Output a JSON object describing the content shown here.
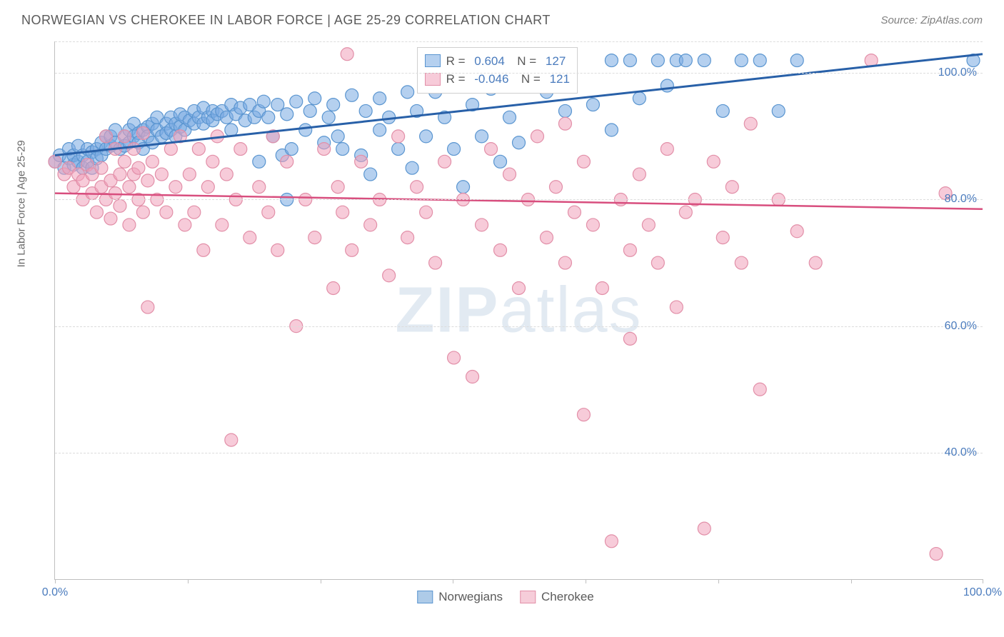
{
  "title": "NORWEGIAN VS CHEROKEE IN LABOR FORCE | AGE 25-29 CORRELATION CHART",
  "source": "Source: ZipAtlas.com",
  "yaxis_label": "In Labor Force | Age 25-29",
  "watermark": "ZIPatlas",
  "chart": {
    "type": "scatter-with-regression",
    "xlim": [
      0,
      100
    ],
    "ylim": [
      20,
      105
    ],
    "yticks": [
      40,
      60,
      80,
      100
    ],
    "ytick_labels": [
      "40.0%",
      "60.0%",
      "80.0%",
      "100.0%"
    ],
    "xtick_positions": [
      0,
      14.3,
      28.6,
      42.9,
      57.2,
      71.5,
      85.8,
      100
    ],
    "xtick_labels_shown": {
      "0": "0.0%",
      "100": "100.0%"
    },
    "grid_color": "#dcdcdc",
    "axis_color": "#bfbfbf",
    "background_color": "#ffffff",
    "series": [
      {
        "name": "Norwegians",
        "marker_color_fill": "rgba(120,170,225,0.55)",
        "marker_color_stroke": "#5a95d0",
        "marker_radius": 9,
        "line_color": "#2860a8",
        "line_width": 3,
        "regression": {
          "x0": 0,
          "y0": 87,
          "x1": 100,
          "y1": 103
        },
        "R": "0.604",
        "N": "127",
        "points": [
          [
            0,
            86
          ],
          [
            0.5,
            87
          ],
          [
            1,
            85
          ],
          [
            1.5,
            86.5
          ],
          [
            1.5,
            88
          ],
          [
            2,
            85.5
          ],
          [
            2,
            87
          ],
          [
            2.5,
            86
          ],
          [
            2.5,
            88.5
          ],
          [
            3,
            87
          ],
          [
            3,
            85
          ],
          [
            3.5,
            86
          ],
          [
            3.5,
            88
          ],
          [
            4,
            87.5
          ],
          [
            4,
            85
          ],
          [
            4.5,
            88
          ],
          [
            4.5,
            86.5
          ],
          [
            5,
            89
          ],
          [
            5,
            87
          ],
          [
            5.5,
            88
          ],
          [
            5.5,
            90
          ],
          [
            6,
            88.5
          ],
          [
            6,
            90
          ],
          [
            6.5,
            89
          ],
          [
            6.5,
            91
          ],
          [
            7,
            88
          ],
          [
            7.5,
            90
          ],
          [
            7.5,
            88.5
          ],
          [
            8,
            91
          ],
          [
            8,
            89
          ],
          [
            8.5,
            90
          ],
          [
            8.5,
            92
          ],
          [
            9,
            90.5
          ],
          [
            9,
            89
          ],
          [
            9.5,
            91
          ],
          [
            9.5,
            88
          ],
          [
            10,
            91.5
          ],
          [
            10,
            90
          ],
          [
            10.5,
            92
          ],
          [
            10.5,
            89
          ],
          [
            11,
            91
          ],
          [
            11,
            93
          ],
          [
            11.5,
            90
          ],
          [
            12,
            92
          ],
          [
            12,
            90.5
          ],
          [
            12.5,
            93
          ],
          [
            12.5,
            91
          ],
          [
            13,
            92
          ],
          [
            13,
            90
          ],
          [
            13.5,
            93.5
          ],
          [
            13.5,
            91.5
          ],
          [
            14,
            93
          ],
          [
            14,
            91
          ],
          [
            14.5,
            92.5
          ],
          [
            15,
            94
          ],
          [
            15,
            92
          ],
          [
            15.5,
            93
          ],
          [
            16,
            94.5
          ],
          [
            16,
            92
          ],
          [
            16.5,
            93
          ],
          [
            17,
            94
          ],
          [
            17,
            92.5
          ],
          [
            17.5,
            93.5
          ],
          [
            18,
            94
          ],
          [
            18.5,
            93
          ],
          [
            19,
            95
          ],
          [
            19,
            91
          ],
          [
            19.5,
            93.5
          ],
          [
            20,
            94.5
          ],
          [
            20.5,
            92.5
          ],
          [
            21,
            95
          ],
          [
            21.5,
            93
          ],
          [
            22,
            86
          ],
          [
            22,
            94
          ],
          [
            22.5,
            95.5
          ],
          [
            23,
            93
          ],
          [
            23.5,
            90
          ],
          [
            24,
            95
          ],
          [
            24.5,
            87
          ],
          [
            25,
            93.5
          ],
          [
            25,
            80
          ],
          [
            25.5,
            88
          ],
          [
            26,
            95.5
          ],
          [
            27,
            91
          ],
          [
            27.5,
            94
          ],
          [
            28,
            96
          ],
          [
            29,
            89
          ],
          [
            29.5,
            93
          ],
          [
            30,
            95
          ],
          [
            30.5,
            90
          ],
          [
            31,
            88
          ],
          [
            32,
            96.5
          ],
          [
            33,
            87
          ],
          [
            33.5,
            94
          ],
          [
            34,
            84
          ],
          [
            35,
            96
          ],
          [
            35,
            91
          ],
          [
            36,
            93
          ],
          [
            37,
            88
          ],
          [
            38,
            97
          ],
          [
            38.5,
            85
          ],
          [
            39,
            94
          ],
          [
            40,
            90
          ],
          [
            41,
            97
          ],
          [
            42,
            93
          ],
          [
            43,
            88
          ],
          [
            44,
            82
          ],
          [
            45,
            95
          ],
          [
            46,
            90
          ],
          [
            47,
            97.5
          ],
          [
            48,
            86
          ],
          [
            49,
            93
          ],
          [
            50,
            89
          ],
          [
            52,
            102
          ],
          [
            53,
            97
          ],
          [
            55,
            94
          ],
          [
            58,
            95
          ],
          [
            60,
            91
          ],
          [
            60,
            102
          ],
          [
            62,
            102
          ],
          [
            63,
            96
          ],
          [
            65,
            102
          ],
          [
            66,
            98
          ],
          [
            67,
            102
          ],
          [
            68,
            102
          ],
          [
            70,
            102
          ],
          [
            72,
            94
          ],
          [
            74,
            102
          ],
          [
            76,
            102
          ],
          [
            78,
            94
          ],
          [
            80,
            102
          ],
          [
            99,
            102
          ]
        ]
      },
      {
        "name": "Cherokee",
        "marker_color_fill": "rgba(240,160,185,0.55)",
        "marker_color_stroke": "#e28fa8",
        "marker_radius": 9,
        "line_color": "#d84e7e",
        "line_width": 2.5,
        "regression": {
          "x0": 0,
          "y0": 81,
          "x1": 100,
          "y1": 78.5
        },
        "R": "-0.046",
        "N": "121",
        "points": [
          [
            0,
            86
          ],
          [
            1,
            84
          ],
          [
            1.5,
            85
          ],
          [
            2,
            82
          ],
          [
            2.5,
            84
          ],
          [
            3,
            80
          ],
          [
            3,
            83
          ],
          [
            3.5,
            85.5
          ],
          [
            4,
            81
          ],
          [
            4,
            84
          ],
          [
            4.5,
            78
          ],
          [
            5,
            82
          ],
          [
            5,
            85
          ],
          [
            5.5,
            80
          ],
          [
            5.5,
            90
          ],
          [
            6,
            83
          ],
          [
            6,
            77
          ],
          [
            6.5,
            88
          ],
          [
            6.5,
            81
          ],
          [
            7,
            84
          ],
          [
            7,
            79
          ],
          [
            7.5,
            86
          ],
          [
            7.5,
            90
          ],
          [
            8,
            82
          ],
          [
            8,
            76
          ],
          [
            8.5,
            84
          ],
          [
            8.5,
            88
          ],
          [
            9,
            80
          ],
          [
            9,
            85
          ],
          [
            9.5,
            90.5
          ],
          [
            9.5,
            78
          ],
          [
            10,
            83
          ],
          [
            10,
            63
          ],
          [
            10.5,
            86
          ],
          [
            11,
            80
          ],
          [
            11.5,
            84
          ],
          [
            12,
            78
          ],
          [
            12.5,
            88
          ],
          [
            13,
            82
          ],
          [
            13.5,
            90
          ],
          [
            14,
            76
          ],
          [
            14.5,
            84
          ],
          [
            15,
            78
          ],
          [
            15.5,
            88
          ],
          [
            16,
            72
          ],
          [
            16.5,
            82
          ],
          [
            17,
            86
          ],
          [
            17.5,
            90
          ],
          [
            18,
            76
          ],
          [
            18.5,
            84
          ],
          [
            19,
            42
          ],
          [
            19.5,
            80
          ],
          [
            20,
            88
          ],
          [
            21,
            74
          ],
          [
            22,
            82
          ],
          [
            23,
            78
          ],
          [
            23.5,
            90
          ],
          [
            24,
            72
          ],
          [
            25,
            86
          ],
          [
            26,
            60
          ],
          [
            27,
            80
          ],
          [
            28,
            74
          ],
          [
            29,
            88
          ],
          [
            30,
            66
          ],
          [
            30.5,
            82
          ],
          [
            31,
            78
          ],
          [
            31.5,
            103
          ],
          [
            32,
            72
          ],
          [
            33,
            86
          ],
          [
            34,
            76
          ],
          [
            35,
            80
          ],
          [
            36,
            68
          ],
          [
            37,
            90
          ],
          [
            38,
            74
          ],
          [
            39,
            82
          ],
          [
            40,
            78
          ],
          [
            41,
            70
          ],
          [
            42,
            86
          ],
          [
            43,
            55
          ],
          [
            44,
            80
          ],
          [
            45,
            52
          ],
          [
            46,
            76
          ],
          [
            47,
            88
          ],
          [
            48,
            72
          ],
          [
            49,
            84
          ],
          [
            50,
            66
          ],
          [
            51,
            80
          ],
          [
            52,
            90
          ],
          [
            53,
            74
          ],
          [
            54,
            82
          ],
          [
            55,
            70
          ],
          [
            55,
            92
          ],
          [
            56,
            78
          ],
          [
            57,
            86
          ],
          [
            57,
            46
          ],
          [
            58,
            76
          ],
          [
            59,
            66
          ],
          [
            60,
            26
          ],
          [
            61,
            80
          ],
          [
            62,
            58
          ],
          [
            62,
            72
          ],
          [
            63,
            84
          ],
          [
            64,
            76
          ],
          [
            65,
            70
          ],
          [
            66,
            88
          ],
          [
            67,
            63
          ],
          [
            68,
            78
          ],
          [
            69,
            80
          ],
          [
            70,
            28
          ],
          [
            71,
            86
          ],
          [
            72,
            74
          ],
          [
            73,
            82
          ],
          [
            74,
            70
          ],
          [
            75,
            92
          ],
          [
            76,
            50
          ],
          [
            78,
            80
          ],
          [
            80,
            75
          ],
          [
            82,
            70
          ],
          [
            88,
            102
          ],
          [
            95,
            24
          ],
          [
            96,
            81
          ]
        ]
      }
    ],
    "legend_box": {
      "left_pct": 39,
      "top_pct": 1
    },
    "legend_bottom_labels": [
      "Norwegians",
      "Cherokee"
    ]
  },
  "colors": {
    "title_text": "#5a5a5a",
    "source_text": "#808080",
    "tick_label": "#4a7bbd",
    "blue_swatch_fill": "#aecbe8",
    "blue_swatch_border": "#5a95d0",
    "pink_swatch_fill": "#f6cdd9",
    "pink_swatch_border": "#e28fa8"
  }
}
